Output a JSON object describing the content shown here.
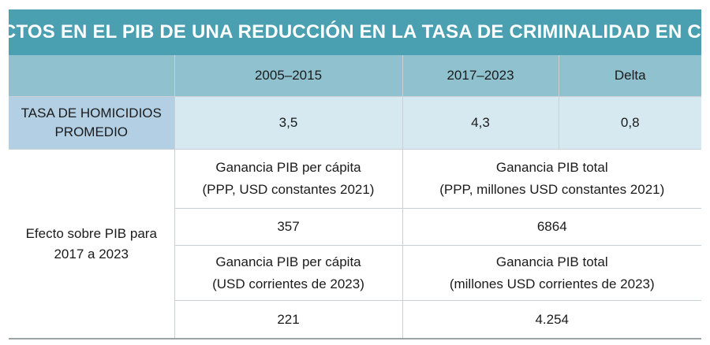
{
  "title": "EFECTOS EN EL PIB DE UNA REDUCCIÓN EN LA TASA DE CRIMINALIDAD EN CHILE",
  "columns": {
    "period1": "2005–2015",
    "period2": "2017–2023",
    "delta": "Delta"
  },
  "homicide_row": {
    "label_line1": "TASA DE HOMICIDIOS",
    "label_line2": "PROMEDIO",
    "period1": "3,5",
    "period2": "4,3",
    "delta": "0,8"
  },
  "effect": {
    "label_line1": "Efecto sobre PIB para",
    "label_line2": "2017 a 2023",
    "ppp": {
      "per_capita_line1": "Ganancia PIB per cápita",
      "per_capita_line2": "(PPP, USD constantes 2021)",
      "total_line1": "Ganancia PIB total",
      "total_line2": "(PPP, millones USD constantes 2021)",
      "per_capita_value": "357",
      "total_value": "6864"
    },
    "current": {
      "per_capita_line1": "Ganancia PIB per cápita",
      "per_capita_line2": "(USD corrientes de 2023)",
      "total_line1": "Ganancia PIB total",
      "total_line2": "(millones USD corrientes de 2023)",
      "per_capita_value": "221",
      "total_value": "4.254"
    }
  }
}
